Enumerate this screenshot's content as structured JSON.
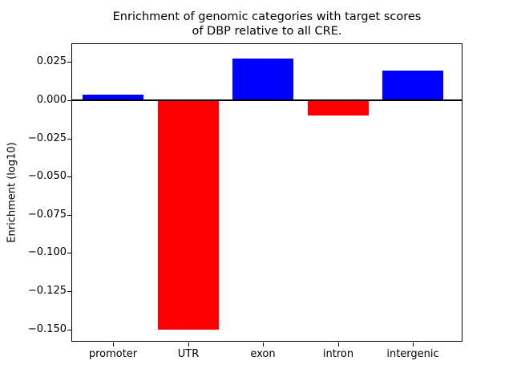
{
  "figure": {
    "background": "#ffffff",
    "text_color": "#000000"
  },
  "chart_data": {
    "type": "bar",
    "title": "Enrichment of genomic categories with target scores of DBP relative to all CRE.",
    "title_lines": [
      "Enrichment of genomic categories with target scores",
      "of DBP relative to all CRE."
    ],
    "xlabel": "",
    "ylabel": "Enrichment (log10)",
    "categories": [
      "promoter",
      "UTR",
      "exon",
      "intron",
      "intergenic"
    ],
    "values": [
      0.0037,
      -0.1503,
      0.0274,
      -0.01,
      0.0195
    ],
    "bar_colors": [
      "#0000ff",
      "#ff0000",
      "#0000ff",
      "#ff0000",
      "#0000ff"
    ],
    "positive_color": "#0000ff",
    "negative_color": "#ff0000",
    "ylim": [
      -0.1581,
      0.0373
    ],
    "yticks": [
      {
        "value": 0.025,
        "label": "0.025"
      },
      {
        "value": 0.0,
        "label": "0.000"
      },
      {
        "value": -0.025,
        "label": "−0.025"
      },
      {
        "value": -0.05,
        "label": "−0.050"
      },
      {
        "value": -0.075,
        "label": "−0.075"
      },
      {
        "value": -0.1,
        "label": "−0.100"
      },
      {
        "value": -0.125,
        "label": "−0.125"
      },
      {
        "value": -0.15,
        "label": "−0.150"
      }
    ],
    "grid": false,
    "legend": null,
    "zero_line": true,
    "spine_color": "#000000"
  }
}
